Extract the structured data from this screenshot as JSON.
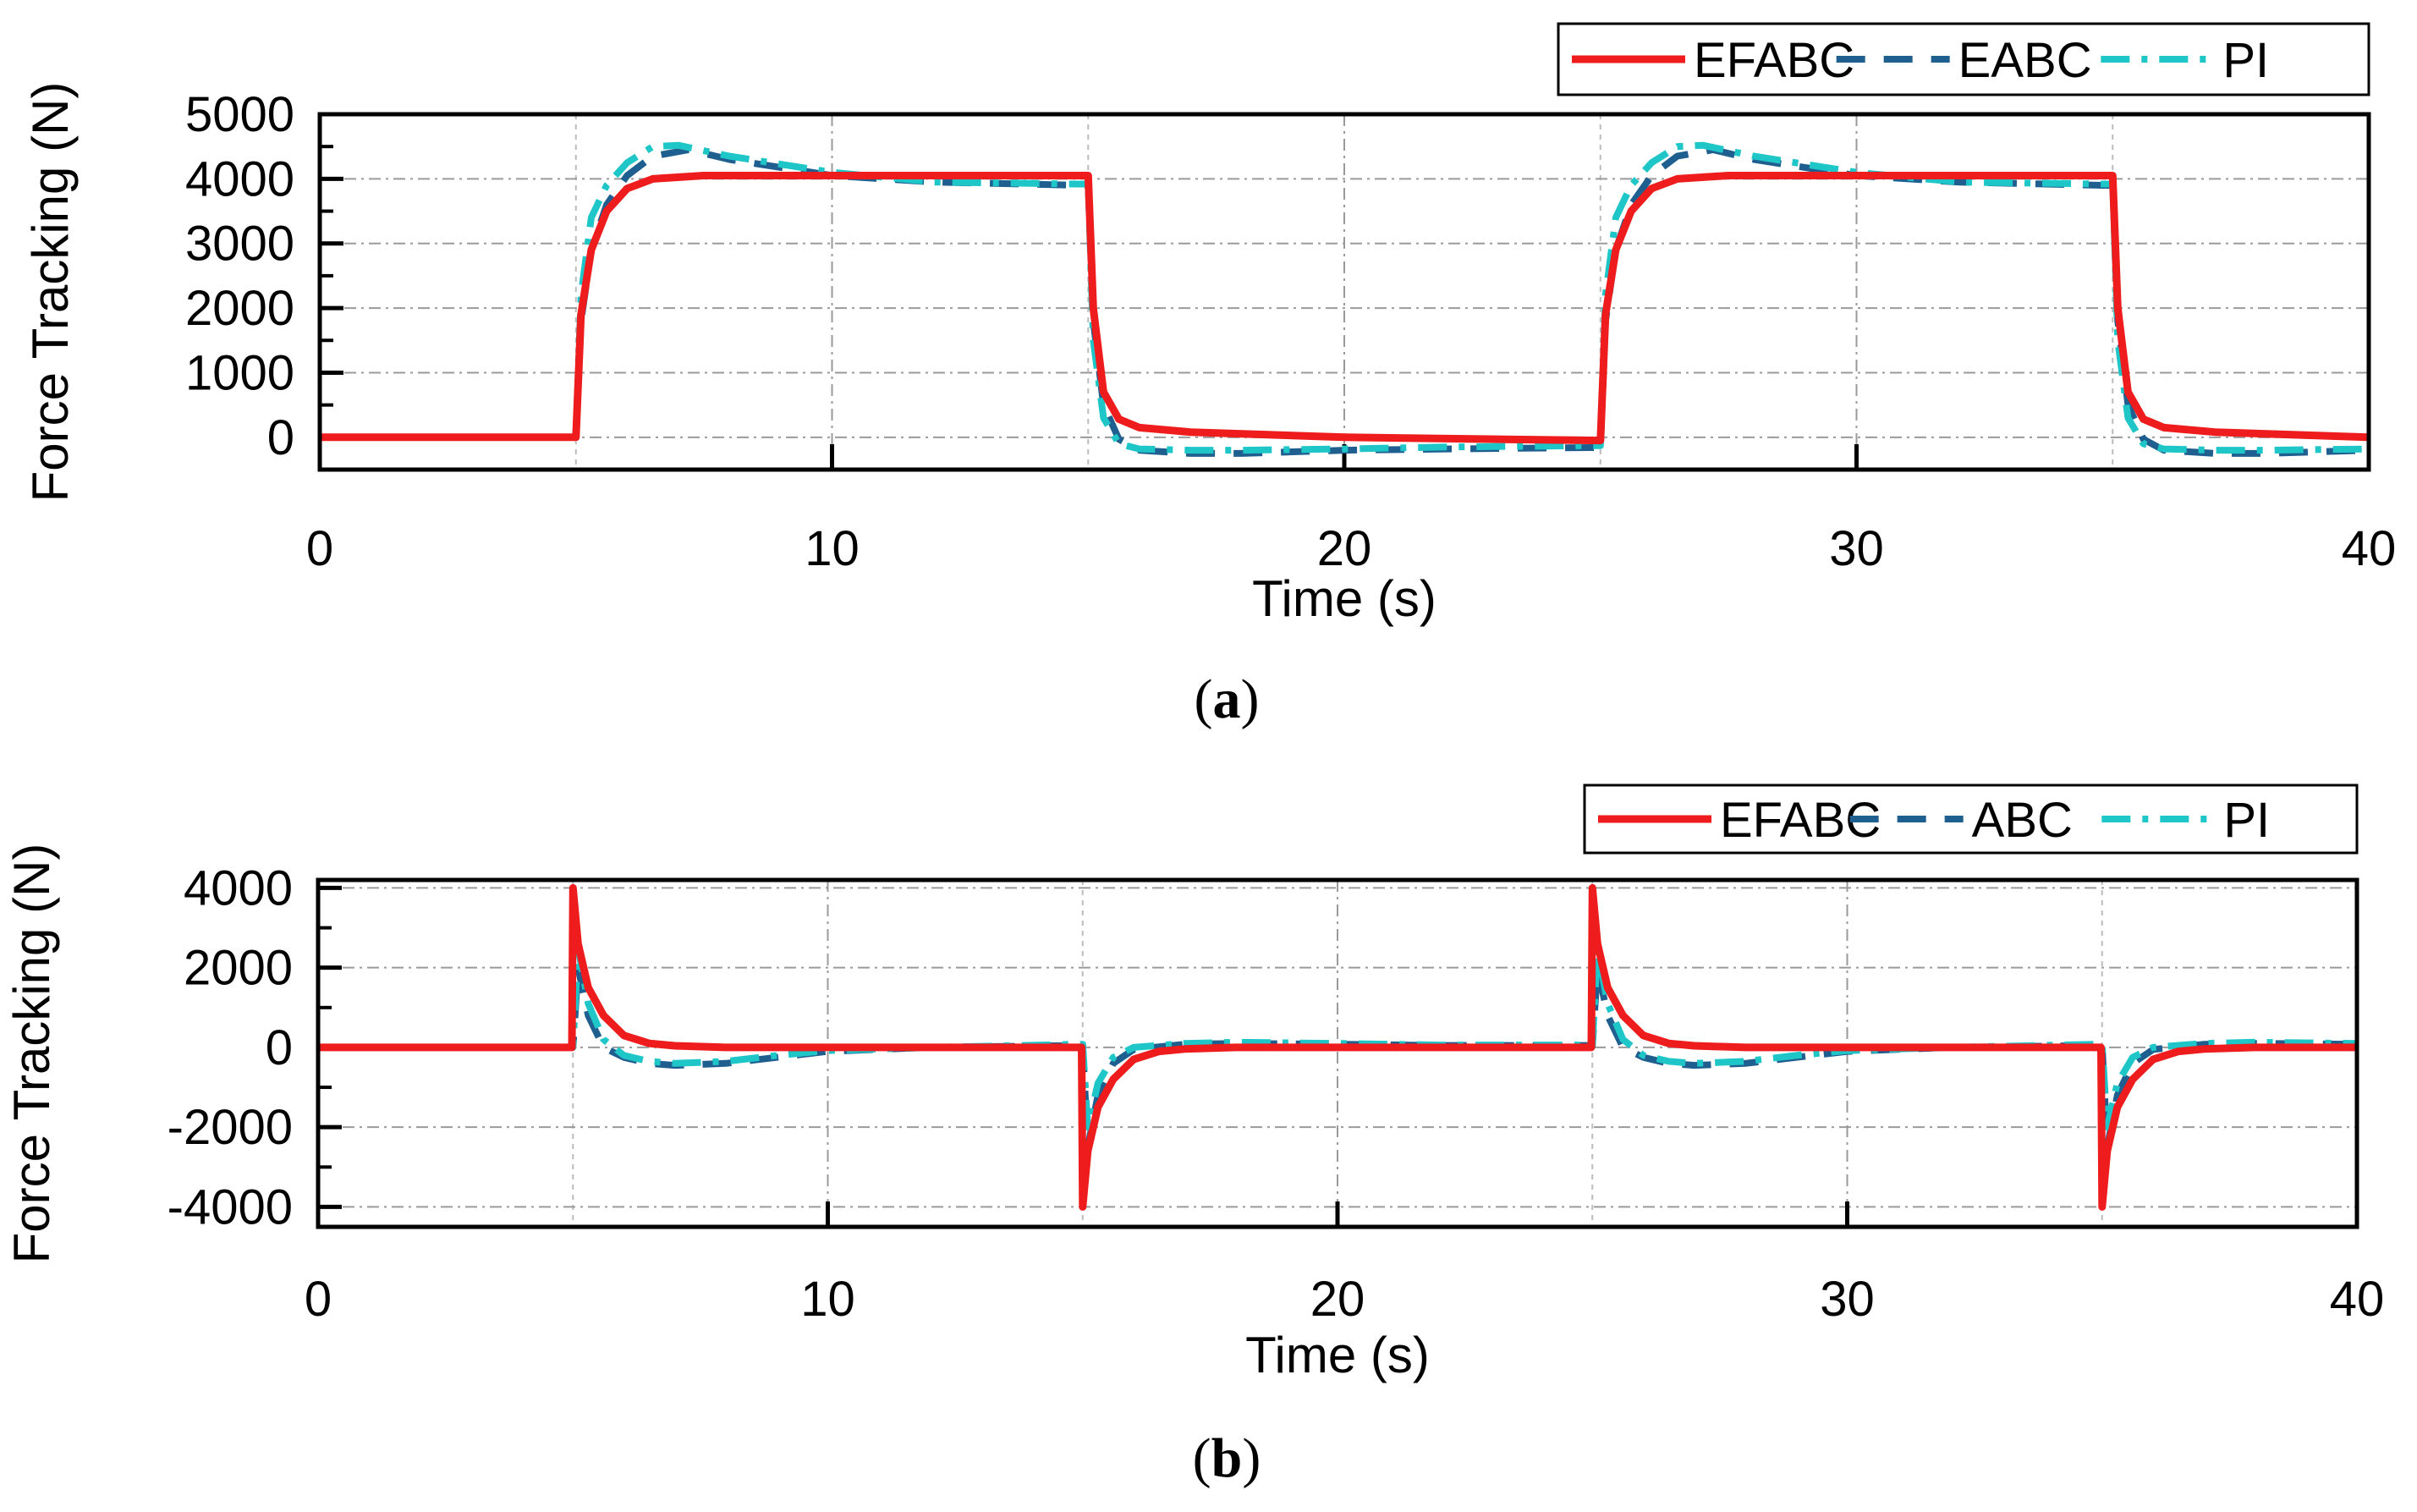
{
  "colors": {
    "efabc": "#ee1c1c",
    "eabc": "#1f5f8f",
    "pi": "#1ec6c8",
    "grid": "#9a9a9a",
    "axis": "#000000"
  },
  "chart_data": [
    {
      "type": "line",
      "caption": "(a)",
      "caption_letter": "a",
      "xlabel": "Time (s)",
      "ylabel": "Force Tracking (N)",
      "xlim": [
        0,
        40
      ],
      "ylim": [
        -500,
        5000
      ],
      "xticks": [
        0,
        10,
        20,
        30,
        40
      ],
      "yticks": [
        0,
        1000,
        2000,
        3000,
        4000,
        5000
      ],
      "grid": true,
      "legend_position": "top-right",
      "series": [
        {
          "name": "EFABC",
          "style": "solid",
          "x": [
            0,
            5.0,
            5.1,
            5.3,
            5.6,
            6.0,
            6.5,
            7.5,
            10,
            12.5,
            14.8,
            15.0,
            15.1,
            15.3,
            15.6,
            16.0,
            17.0,
            20,
            23,
            25.0,
            25.1,
            25.3,
            25.6,
            26.0,
            26.5,
            27.5,
            30,
            32.5,
            34.8,
            35.0,
            35.1,
            35.3,
            35.6,
            36.0,
            37.0,
            40
          ],
          "values": [
            0,
            0,
            1900,
            2900,
            3500,
            3850,
            4000,
            4050,
            4050,
            4050,
            4050,
            4050,
            2000,
            700,
            280,
            150,
            80,
            0,
            -30,
            -50,
            1900,
            2900,
            3500,
            3850,
            4000,
            4050,
            4050,
            4050,
            4050,
            4050,
            2000,
            700,
            280,
            150,
            80,
            0
          ]
        },
        {
          "name": "EABC",
          "style": "dashed",
          "x": [
            0,
            5.0,
            5.1,
            5.3,
            5.6,
            6.0,
            6.5,
            7.2,
            8.0,
            10,
            12,
            14.8,
            15.0,
            15.1,
            15.3,
            15.6,
            16.0,
            17.0,
            18,
            20,
            22,
            24.8,
            25.0,
            25.1,
            25.3,
            25.6,
            26.0,
            26.5,
            27.2,
            28.0,
            30,
            32,
            34.8,
            35.0,
            35.1,
            35.3,
            35.6,
            36.0,
            37.0,
            38,
            40
          ],
          "values": [
            0,
            0,
            1800,
            2900,
            3600,
            4050,
            4350,
            4450,
            4300,
            4050,
            3950,
            3900,
            3900,
            1800,
            500,
            -30,
            -200,
            -250,
            -250,
            -200,
            -180,
            -160,
            -160,
            1800,
            2900,
            3600,
            4050,
            4350,
            4450,
            4300,
            4050,
            3950,
            3900,
            3900,
            1800,
            500,
            -30,
            -200,
            -250,
            -250,
            -200
          ]
        },
        {
          "name": "PI",
          "style": "dashdot",
          "x": [
            0,
            5.0,
            5.1,
            5.3,
            5.6,
            6.0,
            6.5,
            7.0,
            8.0,
            10,
            12,
            14.8,
            15.0,
            15.1,
            15.3,
            15.6,
            16.0,
            17.0,
            18,
            20,
            22,
            24.8,
            25.0,
            25.1,
            25.3,
            25.6,
            26.0,
            26.5,
            27.0,
            28.0,
            30,
            32,
            34.8,
            35.0,
            35.1,
            35.3,
            35.6,
            36.0,
            37.0,
            38,
            40
          ],
          "values": [
            0,
            0,
            2200,
            3400,
            3900,
            4250,
            4500,
            4520,
            4350,
            4100,
            3950,
            3920,
            3920,
            1500,
            300,
            -100,
            -180,
            -200,
            -200,
            -180,
            -150,
            -130,
            -130,
            2200,
            3400,
            3900,
            4250,
            4500,
            4520,
            4350,
            4100,
            3950,
            3920,
            3920,
            1500,
            300,
            -100,
            -180,
            -200,
            -200,
            -180
          ]
        }
      ]
    },
    {
      "type": "line",
      "caption": "(b)",
      "caption_letter": "b",
      "xlabel": "Time (s)",
      "ylabel": "Force Tracking (N)",
      "xlim": [
        0,
        40
      ],
      "ylim": [
        -4500,
        4200
      ],
      "xticks": [
        0,
        10,
        20,
        30,
        40
      ],
      "yticks": [
        -4000,
        -2000,
        0,
        2000,
        4000
      ],
      "grid": true,
      "legend_position": "top-right",
      "series": [
        {
          "name": "EFABC",
          "style": "solid",
          "x": [
            0,
            4.98,
            5.0,
            5.1,
            5.3,
            5.6,
            6.0,
            6.5,
            7.0,
            8.0,
            10,
            14.98,
            15.0,
            15.1,
            15.3,
            15.6,
            16.0,
            16.5,
            17.0,
            18.0,
            20,
            24.98,
            25.0,
            25.1,
            25.3,
            25.6,
            26.0,
            26.5,
            27.0,
            28.0,
            30,
            34.98,
            35.0,
            35.1,
            35.3,
            35.6,
            36.0,
            36.5,
            37.0,
            38.0,
            40
          ],
          "values": [
            0,
            0,
            4000,
            2600,
            1500,
            800,
            300,
            100,
            40,
            0,
            0,
            0,
            -4000,
            -2600,
            -1500,
            -800,
            -300,
            -100,
            -40,
            0,
            0,
            0,
            4000,
            2600,
            1500,
            800,
            300,
            100,
            40,
            0,
            0,
            0,
            -4000,
            -2600,
            -1500,
            -800,
            -300,
            -100,
            -40,
            0,
            0
          ]
        },
        {
          "name": "ABC",
          "style": "dashed",
          "x": [
            0,
            5.0,
            5.1,
            5.3,
            5.6,
            6.0,
            6.5,
            7.0,
            8.0,
            9.0,
            10,
            12,
            14.9,
            15.0,
            15.1,
            15.3,
            15.6,
            16.0,
            17.0,
            18.0,
            20,
            22,
            24.9,
            25.0,
            25.1,
            25.3,
            25.6,
            26.0,
            26.5,
            27.0,
            28.0,
            29.0,
            30,
            32,
            34.9,
            35.0,
            35.1,
            35.3,
            35.6,
            36.0,
            37.0,
            38.0,
            40
          ],
          "values": [
            0,
            0,
            2000,
            800,
            0,
            -250,
            -400,
            -450,
            -400,
            -250,
            -100,
            0,
            50,
            50,
            -2500,
            -1200,
            -400,
            -50,
            80,
            100,
            80,
            50,
            50,
            50,
            2000,
            800,
            0,
            -250,
            -400,
            -450,
            -400,
            -250,
            -100,
            0,
            50,
            50,
            -2500,
            -1200,
            -400,
            -50,
            80,
            100,
            80
          ]
        },
        {
          "name": "PI",
          "style": "dashdot",
          "x": [
            0,
            5.0,
            5.1,
            5.3,
            5.6,
            6.0,
            6.5,
            7.0,
            8.0,
            9.0,
            10,
            12,
            14.9,
            15.0,
            15.1,
            15.3,
            15.6,
            16.0,
            17.0,
            18.0,
            20,
            22,
            24.9,
            25.0,
            25.1,
            25.3,
            25.6,
            26.0,
            26.5,
            27.0,
            28.0,
            29.0,
            30,
            32,
            34.9,
            35.0,
            35.1,
            35.3,
            35.6,
            36.0,
            37.0,
            38.0,
            40
          ],
          "values": [
            0,
            0,
            2500,
            1100,
            200,
            -200,
            -350,
            -400,
            -350,
            -200,
            -80,
            0,
            80,
            80,
            -2000,
            -900,
            -250,
            0,
            100,
            130,
            100,
            60,
            60,
            60,
            2500,
            1100,
            200,
            -200,
            -350,
            -400,
            -350,
            -200,
            -80,
            0,
            80,
            80,
            -2000,
            -900,
            -250,
            0,
            100,
            130,
            100
          ]
        }
      ]
    }
  ]
}
